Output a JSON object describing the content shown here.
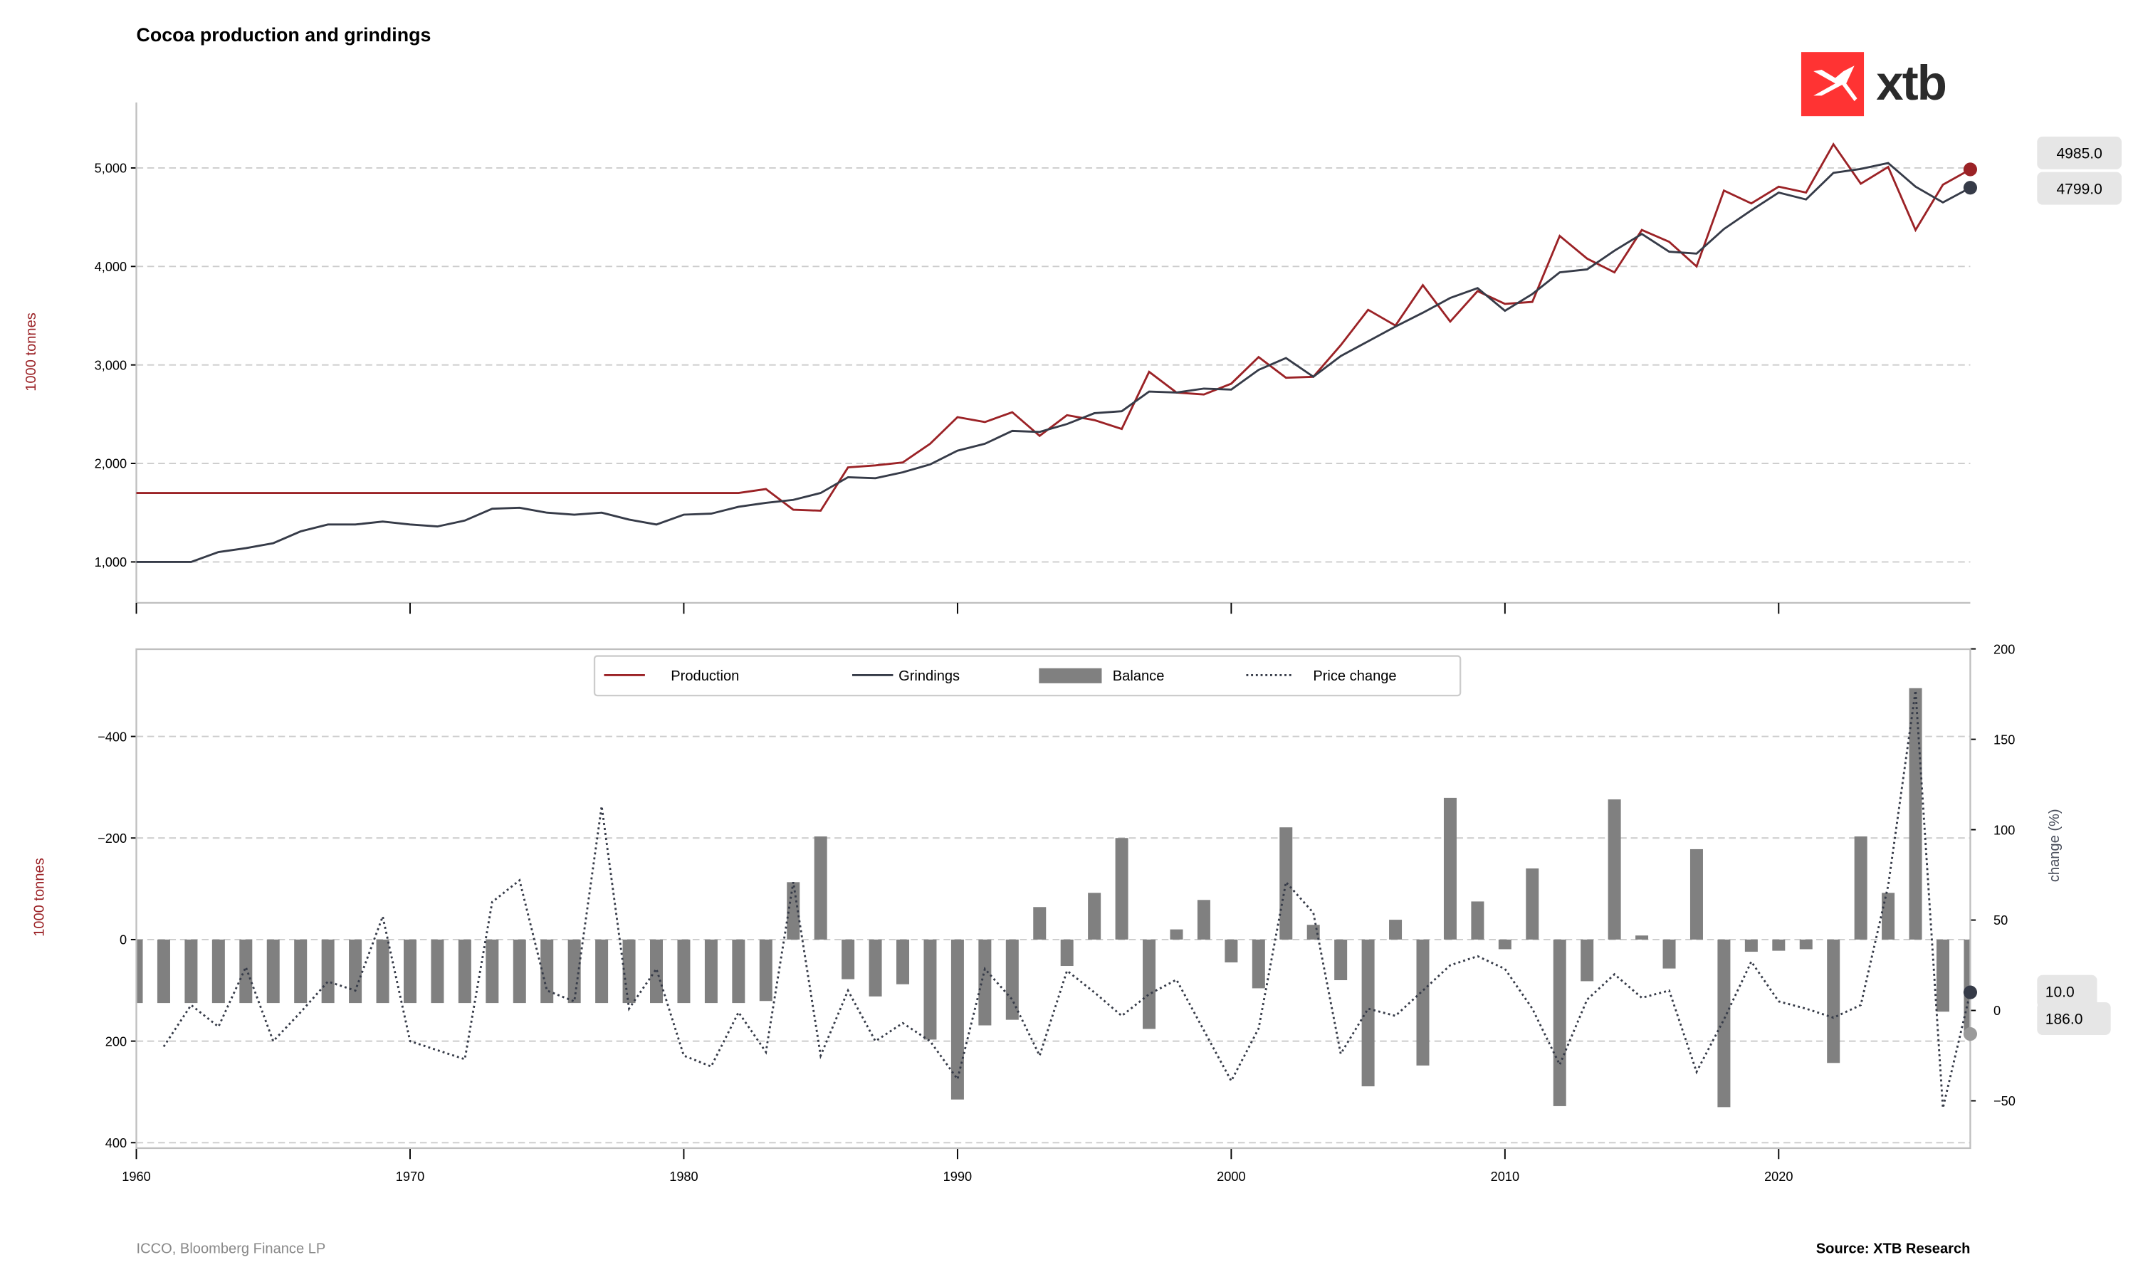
{
  "title": "Cocoa production and grindings",
  "logo_text": "xtb",
  "footer": {
    "left": "ICCO, Bloomberg Finance LP",
    "right": "Source: XTB Research"
  },
  "colors": {
    "production": "#9b2226",
    "grindings": "#363b48",
    "balance": "#808080",
    "price_change": "#363b48",
    "logo": "#ff3333"
  },
  "chart_data": [
    {
      "type": "line",
      "title": "Cocoa production and grindings",
      "ylabel": "1000 tonnes",
      "xlim": [
        1960,
        2027
      ],
      "ylim": [
        600,
        5650
      ],
      "yticks": [
        1000,
        2000,
        3000,
        4000,
        5000
      ],
      "ytick_labels": [
        "1,000",
        "2,000",
        "3,000",
        "4,000",
        "5,000"
      ],
      "grid": true,
      "x": [
        1960,
        1961,
        1962,
        1963,
        1964,
        1965,
        1966,
        1967,
        1968,
        1969,
        1970,
        1971,
        1972,
        1973,
        1974,
        1975,
        1976,
        1977,
        1978,
        1979,
        1980,
        1981,
        1982,
        1983,
        1984,
        1985,
        1986,
        1987,
        1988,
        1989,
        1990,
        1991,
        1992,
        1993,
        1994,
        1995,
        1996,
        1997,
        1998,
        1999,
        2000,
        2001,
        2002,
        2003,
        2004,
        2005,
        2006,
        2007,
        2008,
        2009,
        2010,
        2011,
        2012,
        2013,
        2014,
        2015,
        2016,
        2017,
        2018,
        2019,
        2020,
        2021,
        2022,
        2023,
        2024,
        2025,
        2026,
        2027
      ],
      "series": [
        {
          "name": "Production",
          "values": [
            1700,
            1700,
            1700,
            1700,
            1700,
            1700,
            1700,
            1700,
            1700,
            1700,
            1700,
            1700,
            1700,
            1700,
            1700,
            1700,
            1700,
            1700,
            1700,
            1700,
            1700,
            1700,
            1700,
            1740,
            1530,
            1520,
            1960,
            1980,
            2010,
            2200,
            2470,
            2420,
            2520,
            2280,
            2490,
            2440,
            2350,
            2930,
            2720,
            2700,
            2810,
            3080,
            2870,
            2880,
            3200,
            3560,
            3400,
            3810,
            3440,
            3750,
            3620,
            3640,
            4310,
            4080,
            3940,
            4370,
            4250,
            4000,
            4770,
            4640,
            4810,
            4750,
            5240,
            4840,
            5010,
            4370,
            4830,
            4985
          ]
        },
        {
          "name": "Grindings",
          "values": [
            1000,
            1000,
            1000,
            1100,
            1140,
            1190,
            1310,
            1380,
            1380,
            1410,
            1380,
            1360,
            1420,
            1540,
            1550,
            1500,
            1480,
            1500,
            1430,
            1380,
            1480,
            1490,
            1560,
            1600,
            1630,
            1700,
            1860,
            1850,
            1910,
            1990,
            2130,
            2200,
            2330,
            2320,
            2400,
            2510,
            2530,
            2730,
            2720,
            2760,
            2750,
            2950,
            3070,
            2880,
            3090,
            3240,
            3390,
            3530,
            3680,
            3780,
            3550,
            3720,
            3940,
            3970,
            4160,
            4330,
            4150,
            4130,
            4380,
            4570,
            4750,
            4680,
            4950,
            4990,
            5050,
            4810,
            4650,
            4799
          ]
        }
      ],
      "last_value_labels": [
        "4985.0",
        "4799.0"
      ]
    },
    {
      "type": "bar",
      "ylabel": "1000 tonnes",
      "ylabel_right": "change (%)",
      "xlim": [
        1960,
        2027
      ],
      "xticks": [
        1960,
        1970,
        1980,
        1990,
        2000,
        2010,
        2020
      ],
      "xtick_labels": [
        "1960",
        "1970",
        "1980",
        "1990",
        "2000",
        "2010",
        "2020"
      ],
      "ylim_left": [
        410,
        -580
      ],
      "left_inverted": true,
      "yticks_left": [
        -400,
        -200,
        0,
        200,
        400
      ],
      "ytick_labels_left": [
        "−400",
        "−200",
        "0",
        "200",
        "400"
      ],
      "ylim_right": [
        -75,
        200
      ],
      "yticks_right": [
        200,
        150,
        100,
        50,
        0,
        -50
      ],
      "ytick_labels_right": [
        "200",
        "150",
        "100",
        "50",
        "0",
        "−50"
      ],
      "grid": true,
      "legend": {
        "placement": "top-center",
        "entries": [
          "Production",
          "Grindings",
          "Balance",
          "Price change"
        ]
      },
      "x": [
        1960,
        1961,
        1962,
        1963,
        1964,
        1965,
        1966,
        1967,
        1968,
        1969,
        1970,
        1971,
        1972,
        1973,
        1974,
        1975,
        1976,
        1977,
        1978,
        1979,
        1980,
        1981,
        1982,
        1983,
        1984,
        1985,
        1986,
        1987,
        1988,
        1989,
        1990,
        1991,
        1992,
        1993,
        1994,
        1995,
        1996,
        1997,
        1998,
        1999,
        2000,
        2001,
        2002,
        2003,
        2004,
        2005,
        2006,
        2007,
        2008,
        2009,
        2010,
        2011,
        2012,
        2013,
        2014,
        2015,
        2016,
        2017,
        2018,
        2019,
        2020,
        2021,
        2022,
        2023,
        2024,
        2025,
        2026,
        2027
      ],
      "series": [
        {
          "name": "Balance",
          "axis": "left",
          "values": [
            125,
            125,
            125,
            125,
            125,
            125,
            125,
            125,
            125,
            125,
            125,
            125,
            125,
            125,
            125,
            125,
            125,
            125,
            125,
            125,
            125,
            125,
            125,
            121,
            -113,
            -203,
            78,
            112,
            88,
            197,
            315,
            169,
            158,
            -64,
            52,
            -92,
            -200,
            176,
            -20,
            -78,
            45,
            96,
            -221,
            -29,
            80,
            289,
            -39,
            248,
            -279,
            -75,
            19,
            -140,
            328,
            82,
            -276,
            -8,
            57,
            -178,
            330,
            24,
            22,
            19,
            243,
            -203,
            -92,
            -495,
            142,
            186
          ]
        },
        {
          "name": "Price change",
          "axis": "right",
          "values": [
            null,
            -20,
            3,
            -9,
            24,
            -17,
            -1,
            16,
            11,
            52,
            -17,
            -22,
            -27,
            60,
            72,
            11,
            5,
            113,
            1,
            23,
            -25,
            -31,
            -1,
            -23,
            71,
            -25,
            11,
            -17,
            -7,
            -17,
            -38,
            23,
            6,
            -25,
            22,
            10,
            -3,
            9,
            17,
            -11,
            -39,
            -10,
            71,
            54,
            -24,
            1,
            -3,
            11,
            25,
            30,
            23,
            1,
            -30,
            6,
            20,
            7,
            11,
            -34,
            -5,
            27,
            5,
            1,
            -4,
            3,
            69,
            177,
            -54,
            10
          ]
        }
      ],
      "last_value_labels": [
        "10.0",
        "186.0"
      ]
    }
  ]
}
